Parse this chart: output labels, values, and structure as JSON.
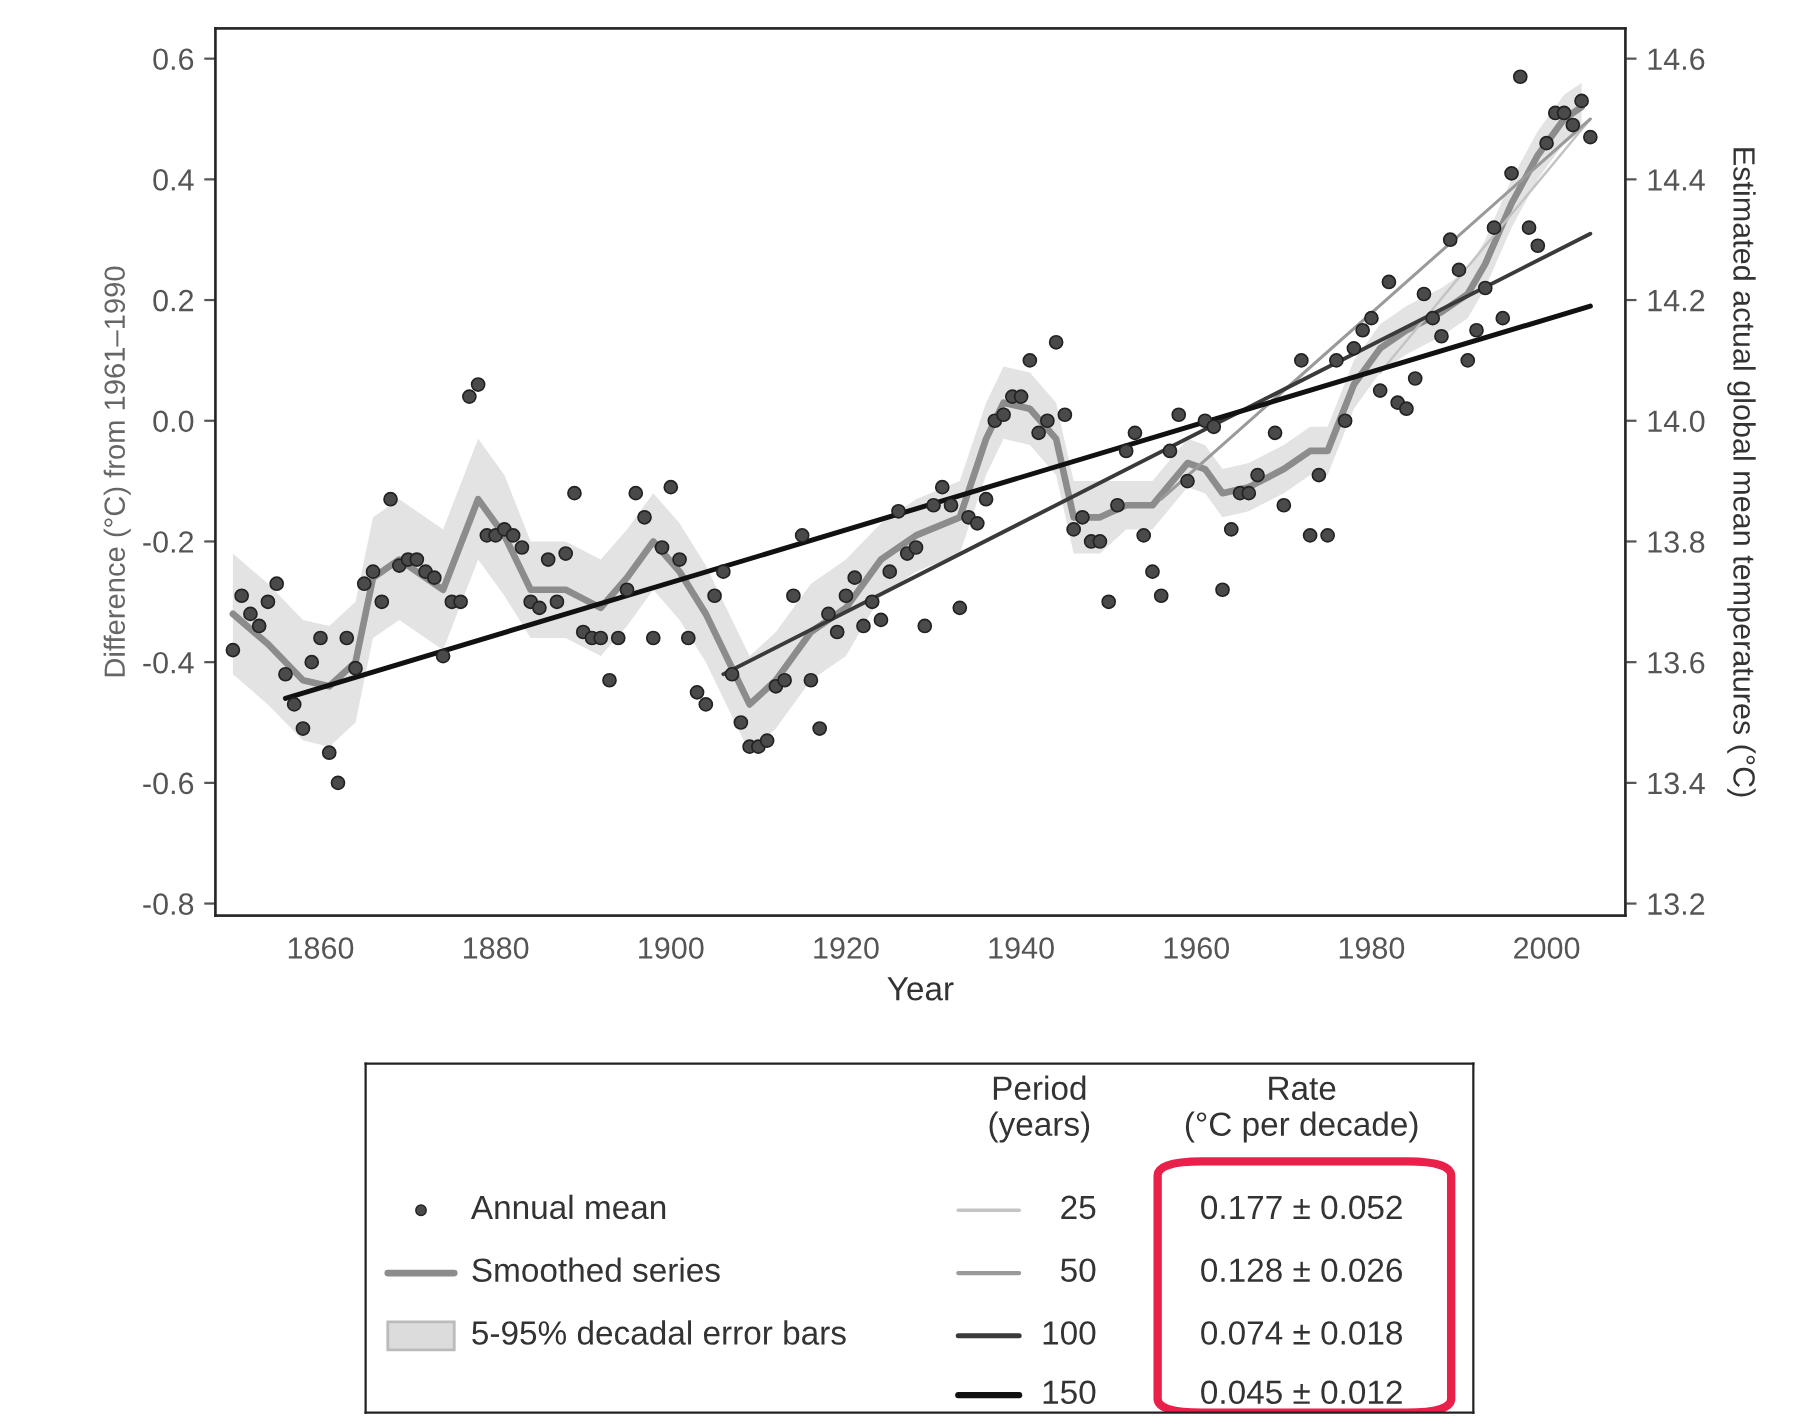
{
  "chart_data": {
    "type": "scatter",
    "xlabel": "Year",
    "ylabel": "Difference (°C) from 1961–1990",
    "y2label": "Estimated actual global mean temperatures (°C)",
    "legend_title": "Period (years)",
    "annotations": [
      "5-95% decadal error bars",
      "Rate (°C per decade)",
      "0.177 ± 0.052",
      "0.128 ± 0.026",
      "0.074 ± 0.018",
      "0.045 ± 0.012"
    ],
    "xlim": [
      1848,
      2009
    ],
    "xticks": [
      1860,
      1880,
      1900,
      1920,
      1940,
      1960,
      1980,
      2000
    ],
    "ylim": [
      -0.82,
      0.65
    ],
    "yticks": [
      -0.8,
      -0.6,
      -0.4,
      -0.2,
      {
        "value": 0,
        "label": "0.0"
      },
      0.2,
      0.4,
      0.6
    ],
    "y2lim": [
      13.18,
      14.65
    ],
    "y2ticks": [
      13.2,
      13.4,
      13.6,
      13.8,
      {
        "value": 14,
        "label": "14.0"
      },
      14.2,
      14.4,
      14.6
    ],
    "grid": false,
    "legend": "bottom",
    "series": [
      {
        "name": "Annual mean",
        "marker": "circle",
        "color": "#4a4a4a",
        "x": [
          1850,
          1851,
          1852,
          1853,
          1854,
          1855,
          1856,
          1857,
          1858,
          1859,
          1860,
          1861,
          1862,
          1863,
          1864,
          1865,
          1866,
          1867,
          1868,
          1869,
          1870,
          1871,
          1872,
          1873,
          1874,
          1875,
          1876,
          1877,
          1878,
          1879,
          1880,
          1881,
          1882,
          1883,
          1884,
          1885,
          1886,
          1887,
          1888,
          1889,
          1890,
          1891,
          1892,
          1893,
          1894,
          1895,
          1896,
          1897,
          1898,
          1899,
          1900,
          1901,
          1902,
          1903,
          1904,
          1905,
          1906,
          1907,
          1908,
          1909,
          1910,
          1911,
          1912,
          1913,
          1914,
          1915,
          1916,
          1917,
          1918,
          1919,
          1920,
          1921,
          1922,
          1923,
          1924,
          1925,
          1926,
          1927,
          1928,
          1929,
          1930,
          1931,
          1932,
          1933,
          1934,
          1935,
          1936,
          1937,
          1938,
          1939,
          1940,
          1941,
          1942,
          1943,
          1944,
          1945,
          1946,
          1947,
          1948,
          1949,
          1950,
          1951,
          1952,
          1953,
          1954,
          1955,
          1956,
          1957,
          1958,
          1959,
          1961,
          1962,
          1963,
          1964,
          1965,
          1966,
          1967,
          1969,
          1970,
          1972,
          1973,
          1974,
          1975,
          1976,
          1977,
          1978,
          1979,
          1980,
          1981,
          1982,
          1983,
          1984,
          1985,
          1986,
          1987,
          1988,
          1989,
          1990,
          1991,
          1992,
          1993,
          1994,
          1995,
          1996,
          1997,
          1998,
          1999,
          2000,
          2001,
          2002,
          2003,
          2004,
          2005
        ],
        "values": [
          -0.38,
          -0.29,
          -0.32,
          -0.34,
          -0.3,
          -0.27,
          -0.42,
          -0.47,
          -0.51,
          -0.4,
          -0.36,
          -0.55,
          -0.6,
          -0.36,
          -0.41,
          -0.27,
          -0.25,
          -0.3,
          -0.13,
          -0.24,
          -0.23,
          -0.23,
          -0.25,
          -0.26,
          -0.39,
          -0.3,
          -0.3,
          0.04,
          0.06,
          -0.19,
          -0.19,
          -0.18,
          -0.19,
          -0.21,
          -0.3,
          -0.31,
          -0.23,
          -0.3,
          -0.22,
          -0.12,
          -0.35,
          -0.36,
          -0.36,
          -0.43,
          -0.36,
          -0.28,
          -0.12,
          -0.16,
          -0.36,
          -0.21,
          -0.11,
          -0.23,
          -0.36,
          -0.45,
          -0.47,
          -0.29,
          -0.25,
          -0.42,
          -0.5,
          -0.54,
          -0.54,
          -0.53,
          -0.44,
          -0.43,
          -0.29,
          -0.19,
          -0.43,
          -0.51,
          -0.32,
          -0.35,
          -0.29,
          -0.26,
          -0.34,
          -0.3,
          -0.33,
          -0.25,
          -0.15,
          -0.22,
          -0.21,
          -0.34,
          -0.14,
          -0.11,
          -0.14,
          -0.31,
          -0.16,
          -0.17,
          -0.13,
          0.0,
          0.01,
          0.04,
          0.04,
          0.1,
          -0.02,
          0.0,
          0.13,
          0.01,
          -0.18,
          -0.16,
          -0.2,
          -0.2,
          -0.3,
          -0.14,
          -0.05,
          -0.02,
          -0.19,
          -0.25,
          -0.29,
          -0.05,
          0.01,
          -0.1,
          0.0,
          -0.01,
          -0.28,
          -0.18,
          -0.12,
          -0.12,
          -0.09,
          -0.02,
          -0.14,
          0.1,
          -0.19,
          -0.09,
          -0.19,
          0.1,
          0.0,
          0.12,
          0.15,
          0.17,
          0.05,
          0.23,
          0.03,
          0.02,
          0.07,
          0.21,
          0.17,
          0.14,
          0.3,
          0.25,
          0.1,
          0.15,
          0.22,
          0.32,
          0.17,
          0.41,
          0.57,
          0.32,
          0.29,
          0.46,
          0.51,
          0.51,
          0.49,
          0.53,
          0.47
        ]
      },
      {
        "name": "Smoothed series",
        "type": "line",
        "color": "#8c8c8c",
        "line_style": "solid",
        "x": [
          1850,
          1854,
          1858,
          1861,
          1864,
          1866,
          1869,
          1872,
          1874,
          1878,
          1881,
          1884,
          1888,
          1892,
          1895,
          1898,
          1901,
          1904,
          1907,
          1909,
          1912,
          1916,
          1920,
          1924,
          1928,
          1933,
          1936,
          1938,
          1941,
          1944,
          1946,
          1949,
          1952,
          1955,
          1959,
          1961,
          1963,
          1966,
          1970,
          1973,
          1975,
          1978,
          1981,
          1984,
          1988,
          1991,
          1993,
          1996,
          1999,
          2002,
          2004
        ],
        "values": [
          -0.32,
          -0.37,
          -0.43,
          -0.44,
          -0.4,
          -0.26,
          -0.23,
          -0.26,
          -0.28,
          -0.13,
          -0.19,
          -0.28,
          -0.28,
          -0.31,
          -0.26,
          -0.2,
          -0.25,
          -0.32,
          -0.41,
          -0.47,
          -0.43,
          -0.35,
          -0.31,
          -0.23,
          -0.19,
          -0.16,
          -0.03,
          0.03,
          0.02,
          -0.03,
          -0.16,
          -0.16,
          -0.14,
          -0.14,
          -0.07,
          -0.08,
          -0.12,
          -0.11,
          -0.08,
          -0.05,
          -0.05,
          0.06,
          0.12,
          0.15,
          0.18,
          0.21,
          0.26,
          0.36,
          0.44,
          0.5,
          0.52
        ],
        "lower": [
          -0.42,
          -0.47,
          -0.53,
          -0.54,
          -0.5,
          -0.36,
          -0.33,
          -0.36,
          -0.38,
          -0.23,
          -0.29,
          -0.36,
          -0.36,
          -0.39,
          -0.34,
          -0.28,
          -0.33,
          -0.4,
          -0.49,
          -0.55,
          -0.51,
          -0.43,
          -0.39,
          -0.29,
          -0.25,
          -0.22,
          -0.09,
          -0.03,
          -0.04,
          -0.09,
          -0.22,
          -0.22,
          -0.18,
          -0.18,
          -0.11,
          -0.12,
          -0.16,
          -0.15,
          -0.12,
          -0.09,
          -0.09,
          0.02,
          0.08,
          0.11,
          0.14,
          0.17,
          0.22,
          0.32,
          0.4,
          0.46,
          0.48
        ],
        "upper": [
          -0.22,
          -0.27,
          -0.33,
          -0.34,
          -0.3,
          -0.16,
          -0.13,
          -0.16,
          -0.18,
          -0.03,
          -0.09,
          -0.2,
          -0.2,
          -0.23,
          -0.18,
          -0.12,
          -0.17,
          -0.24,
          -0.33,
          -0.39,
          -0.35,
          -0.27,
          -0.23,
          -0.17,
          -0.13,
          -0.1,
          0.03,
          0.09,
          0.08,
          0.03,
          -0.1,
          -0.1,
          -0.1,
          -0.1,
          -0.03,
          -0.04,
          -0.08,
          -0.07,
          -0.04,
          -0.01,
          -0.01,
          0.1,
          0.16,
          0.19,
          0.22,
          0.25,
          0.3,
          0.4,
          0.48,
          0.54,
          0.56
        ]
      },
      {
        "name": "25",
        "type": "line",
        "color": "#c4c4c4",
        "line_style": "solid",
        "x": [
          1981,
          2005
        ],
        "values": [
          0.08,
          0.5
        ]
      },
      {
        "name": "50",
        "type": "line",
        "color": "#9a9a9a",
        "line_style": "solid",
        "x": [
          1956,
          2005
        ],
        "values": [
          -0.13,
          0.5
        ]
      },
      {
        "name": "100",
        "type": "line",
        "color": "#3a3a3a",
        "line_style": "solid",
        "x": [
          1906,
          2005
        ],
        "values": [
          -0.42,
          0.31
        ]
      },
      {
        "name": "150",
        "type": "line",
        "color": "#111111",
        "line_style": "solid",
        "x": [
          1856,
          2005
        ],
        "values": [
          -0.46,
          0.19
        ]
      }
    ]
  }
}
